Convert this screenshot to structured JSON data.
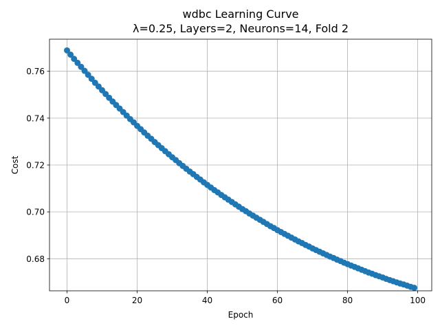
{
  "chart_data": {
    "type": "line",
    "title_line1": "wdbc Learning Curve",
    "title_line2": "λ=0.25, Layers=2, Neurons=14, Fold 2",
    "xlabel": "Epoch",
    "ylabel": "Cost",
    "xlim": [
      -5,
      104
    ],
    "ylim": [
      0.6663,
      0.7737
    ],
    "xticks": [
      0,
      20,
      40,
      60,
      80,
      100
    ],
    "yticks": [
      0.68,
      0.7,
      0.72,
      0.74,
      0.76
    ],
    "xtick_labels": [
      "0",
      "20",
      "40",
      "60",
      "80",
      "100"
    ],
    "ytick_labels": [
      "0.68",
      "0.70",
      "0.72",
      "0.74",
      "0.76"
    ],
    "grid": true,
    "color": "#1f77b4",
    "marker": "circle",
    "series": [
      {
        "x": [
          0,
          1,
          2,
          3,
          4,
          5,
          6,
          7,
          8,
          9,
          10,
          11,
          12,
          13,
          14,
          15,
          16,
          17,
          18,
          19,
          20,
          21,
          22,
          23,
          24,
          25,
          26,
          27,
          28,
          29,
          30,
          31,
          32,
          33,
          34,
          35,
          36,
          37,
          38,
          39,
          40,
          41,
          42,
          43,
          44,
          45,
          46,
          47,
          48,
          49,
          50,
          51,
          52,
          53,
          54,
          55,
          56,
          57,
          58,
          59,
          60,
          61,
          62,
          63,
          64,
          65,
          66,
          67,
          68,
          69,
          70,
          71,
          72,
          73,
          74,
          75,
          76,
          77,
          78,
          79,
          80,
          81,
          82,
          83,
          84,
          85,
          86,
          87,
          88,
          89,
          90,
          91,
          92,
          93,
          94,
          95,
          96,
          97,
          98,
          99
        ],
        "values": [
          0.7689,
          0.7671,
          0.7653,
          0.7636,
          0.7619,
          0.7602,
          0.7585,
          0.7568,
          0.7551,
          0.7535,
          0.7519,
          0.7503,
          0.7487,
          0.7471,
          0.7456,
          0.7441,
          0.7426,
          0.7411,
          0.7396,
          0.7382,
          0.7367,
          0.7353,
          0.7339,
          0.7325,
          0.7312,
          0.7298,
          0.7285,
          0.7272,
          0.7259,
          0.7246,
          0.7233,
          0.7221,
          0.7208,
          0.7196,
          0.7184,
          0.7172,
          0.7161,
          0.7149,
          0.7138,
          0.7126,
          0.7115,
          0.7104,
          0.7093,
          0.7083,
          0.7072,
          0.7062,
          0.7052,
          0.7042,
          0.7032,
          0.7022,
          0.7012,
          0.7003,
          0.6993,
          0.6984,
          0.6975,
          0.6966,
          0.6957,
          0.6948,
          0.6939,
          0.6931,
          0.6922,
          0.6914,
          0.6906,
          0.6898,
          0.689,
          0.6882,
          0.6874,
          0.6867,
          0.6859,
          0.6852,
          0.6844,
          0.6837,
          0.683,
          0.6823,
          0.6816,
          0.6809,
          0.6803,
          0.6796,
          0.679,
          0.6783,
          0.6777,
          0.6771,
          0.6765,
          0.6759,
          0.6753,
          0.6747,
          0.6741,
          0.6736,
          0.673,
          0.6725,
          0.672,
          0.6714,
          0.6709,
          0.6704,
          0.6699,
          0.6694,
          0.669,
          0.6685,
          0.668,
          0.6676
        ]
      }
    ]
  }
}
